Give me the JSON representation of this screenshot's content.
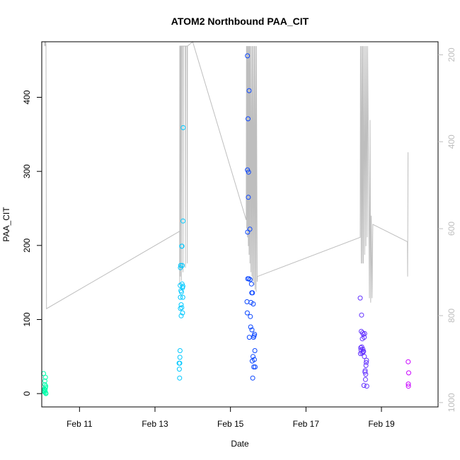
{
  "chart_data": {
    "type": "scatter",
    "title": "ATOM2 Northbound PAA_CIT",
    "xlabel": "Date",
    "ylabel": "PAA_CIT",
    "xlim": [
      "2024-02-10T00:00",
      "2024-02-20T12:00"
    ],
    "ylim": [
      -18,
      475
    ],
    "x_ticks": [
      {
        "label": "Feb 11",
        "value": "2024-02-11T00:00"
      },
      {
        "label": "Feb 13",
        "value": "2024-02-13T00:00"
      },
      {
        "label": "Feb 15",
        "value": "2024-02-15T00:00"
      },
      {
        "label": "Feb 17",
        "value": "2024-02-17T00:00"
      },
      {
        "label": "Feb 19",
        "value": "2024-02-19T00:00"
      }
    ],
    "y_ticks": [
      0,
      100,
      200,
      300,
      400
    ],
    "y2": {
      "reversed": true,
      "lim": [
        1010,
        170
      ],
      "ticks": [
        200,
        400,
        600,
        800,
        1000
      ],
      "color": "#bebebe"
    },
    "grid": false,
    "legend": "none",
    "depth_trace": [
      [
        "2024-02-10T01:48",
        135
      ],
      [
        "2024-02-10T01:56",
        180
      ],
      [
        "2024-02-10T02:10",
        148
      ],
      [
        "2024-02-10T02:19",
        180
      ],
      [
        "2024-02-10T02:33",
        157
      ],
      [
        "2024-02-10T02:42",
        180
      ],
      [
        "2024-02-10T03:00",
        784
      ],
      [
        "2024-02-13T15:40",
        606
      ],
      [
        "2024-02-13T15:42",
        730
      ],
      [
        "2024-02-13T15:45",
        180
      ],
      [
        "2024-02-13T16:05",
        180
      ],
      [
        "2024-02-13T16:10",
        710
      ],
      [
        "2024-02-13T16:20",
        180
      ],
      [
        "2024-02-13T16:40",
        180
      ],
      [
        "2024-02-13T16:48",
        720
      ],
      [
        "2024-02-13T17:00",
        180
      ],
      [
        "2024-02-13T17:40",
        180
      ],
      [
        "2024-02-13T17:50",
        700
      ],
      [
        "2024-02-13T18:00",
        180
      ],
      [
        "2024-02-13T19:10",
        180
      ],
      [
        "2024-02-13T19:20",
        690
      ],
      [
        "2024-02-13T19:30",
        180
      ],
      [
        "2024-02-13T20:20",
        180
      ],
      [
        "2024-02-13T20:30",
        680
      ],
      [
        "2024-02-13T20:40",
        180
      ],
      [
        "2024-02-14T00:00",
        170
      ],
      [
        "2024-02-15T10:00",
        580
      ],
      [
        "2024-02-15T10:10",
        180
      ],
      [
        "2024-02-15T10:20",
        600
      ],
      [
        "2024-02-15T10:30",
        180
      ],
      [
        "2024-02-15T10:48",
        620
      ],
      [
        "2024-02-15T11:00",
        180
      ],
      [
        "2024-02-15T11:20",
        640
      ],
      [
        "2024-02-15T11:30",
        180
      ],
      [
        "2024-02-15T11:50",
        660
      ],
      [
        "2024-02-15T12:00",
        180
      ],
      [
        "2024-02-15T12:20",
        680
      ],
      [
        "2024-02-15T12:30",
        180
      ],
      [
        "2024-02-15T13:00",
        700
      ],
      [
        "2024-02-15T13:10",
        180
      ],
      [
        "2024-02-15T13:40",
        710
      ],
      [
        "2024-02-15T13:50",
        180
      ],
      [
        "2024-02-15T14:20",
        720
      ],
      [
        "2024-02-15T14:30",
        180
      ],
      [
        "2024-02-15T15:00",
        730
      ],
      [
        "2024-02-15T15:10",
        180
      ],
      [
        "2024-02-15T15:40",
        740
      ],
      [
        "2024-02-15T15:50",
        180
      ],
      [
        "2024-02-15T16:20",
        745
      ],
      [
        "2024-02-15T16:30",
        180
      ],
      [
        "2024-02-15T17:00",
        722
      ],
      [
        "2024-02-15T17:06",
        710
      ],
      [
        "2024-02-18T10:30",
        620
      ],
      [
        "2024-02-18T10:40",
        180
      ],
      [
        "2024-02-18T11:10",
        680
      ],
      [
        "2024-02-18T11:20",
        180
      ],
      [
        "2024-02-18T11:50",
        680
      ],
      [
        "2024-02-18T12:00",
        180
      ],
      [
        "2024-02-18T12:30",
        680
      ],
      [
        "2024-02-18T12:40",
        180
      ],
      [
        "2024-02-18T13:20",
        660
      ],
      [
        "2024-02-18T13:30",
        180
      ],
      [
        "2024-02-18T14:10",
        640
      ],
      [
        "2024-02-18T14:20",
        180
      ],
      [
        "2024-02-18T15:00",
        620
      ],
      [
        "2024-02-18T15:10",
        180
      ],
      [
        "2024-02-18T16:00",
        570
      ],
      [
        "2024-02-18T16:20",
        760
      ],
      [
        "2024-02-18T16:45",
        350
      ],
      [
        "2024-02-18T17:10",
        770
      ],
      [
        "2024-02-18T17:30",
        570
      ],
      [
        "2024-02-18T18:00",
        760
      ],
      [
        "2024-02-18T18:30",
        590
      ],
      [
        "2024-02-19T16:30",
        630
      ],
      [
        "2024-02-19T16:40",
        710
      ],
      [
        "2024-02-19T16:55",
        425
      ],
      [
        "2024-02-19T17:05",
        425
      ]
    ],
    "points": [
      [
        "2024-02-10T01:10",
        27,
        "#00ffaa"
      ],
      [
        "2024-02-10T01:20",
        4,
        "#00ffaa"
      ],
      [
        "2024-02-10T01:30",
        3,
        "#00ffaa"
      ],
      [
        "2024-02-10T01:40",
        6,
        "#00ffaa"
      ],
      [
        "2024-02-10T01:50",
        2,
        "#00ffaa"
      ],
      [
        "2024-02-10T02:00",
        12,
        "#00ffaa"
      ],
      [
        "2024-02-10T02:00",
        17,
        "#00ffaa"
      ],
      [
        "2024-02-10T02:10",
        5,
        "#00ffaa"
      ],
      [
        "2024-02-10T02:20",
        8,
        "#00ffaa"
      ],
      [
        "2024-02-10T02:20",
        22,
        "#00ffaa"
      ],
      [
        "2024-02-10T02:30",
        1,
        "#00ffaa"
      ],
      [
        "2024-02-10T02:30",
        10,
        "#00ffaa"
      ],
      [
        "2024-02-10T02:40",
        0,
        "#00ffaa"
      ],
      [
        "2024-02-13T15:20",
        41,
        "#00c8ff"
      ],
      [
        "2024-02-13T15:30",
        33,
        "#00c8ff"
      ],
      [
        "2024-02-13T15:40",
        21,
        "#00c8ff"
      ],
      [
        "2024-02-13T15:45",
        41,
        "#00c8ff"
      ],
      [
        "2024-02-13T15:50",
        49,
        "#00c8ff"
      ],
      [
        "2024-02-13T15:55",
        58,
        "#00c8ff"
      ],
      [
        "2024-02-13T16:00",
        146,
        "#00c8ff"
      ],
      [
        "2024-02-13T16:10",
        130,
        "#00c8ff"
      ],
      [
        "2024-02-13T16:10",
        170,
        "#00c8ff"
      ],
      [
        "2024-02-13T16:10",
        115,
        "#00c8ff"
      ],
      [
        "2024-02-13T16:20",
        173,
        "#00c8ff"
      ],
      [
        "2024-02-13T16:30",
        139,
        "#00c8ff"
      ],
      [
        "2024-02-13T16:40",
        105,
        "#00c8ff"
      ],
      [
        "2024-02-13T16:40",
        120,
        "#00c8ff"
      ],
      [
        "2024-02-13T16:50",
        137,
        "#00c8ff"
      ],
      [
        "2024-02-13T17:00",
        116,
        "#00c8ff"
      ],
      [
        "2024-02-13T17:00",
        199,
        "#00c8ff"
      ],
      [
        "2024-02-13T17:10",
        199,
        "#00c8ff"
      ],
      [
        "2024-02-13T17:15",
        148,
        "#00c8ff"
      ],
      [
        "2024-02-13T17:20",
        173,
        "#00c8ff"
      ],
      [
        "2024-02-13T17:30",
        109,
        "#00c8ff"
      ],
      [
        "2024-02-13T17:30",
        143,
        "#00c8ff"
      ],
      [
        "2024-02-13T17:40",
        130,
        "#00c8ff"
      ],
      [
        "2024-02-13T17:45",
        145,
        "#00c8ff"
      ],
      [
        "2024-02-13T17:50",
        233,
        "#00c8ff"
      ],
      [
        "2024-02-13T17:55",
        359,
        "#00c8ff"
      ],
      [
        "2024-02-15T10:30",
        124,
        "#0a46ff"
      ],
      [
        "2024-02-15T10:40",
        109,
        "#0a46ff"
      ],
      [
        "2024-02-15T10:50",
        302,
        "#0a46ff"
      ],
      [
        "2024-02-15T10:50",
        456,
        "#0a46ff"
      ],
      [
        "2024-02-15T10:55",
        218,
        "#0a46ff"
      ],
      [
        "2024-02-15T11:00",
        155,
        "#0a46ff"
      ],
      [
        "2024-02-15T11:10",
        371,
        "#0a46ff"
      ],
      [
        "2024-02-15T11:20",
        265,
        "#0a46ff"
      ],
      [
        "2024-02-15T11:30",
        299,
        "#0a46ff"
      ],
      [
        "2024-02-15T11:40",
        155,
        "#0a46ff"
      ],
      [
        "2024-02-15T11:50",
        409,
        "#0a46ff"
      ],
      [
        "2024-02-15T12:00",
        76,
        "#0a46ff"
      ],
      [
        "2024-02-15T12:20",
        222,
        "#0a46ff"
      ],
      [
        "2024-02-15T12:30",
        154,
        "#0a46ff"
      ],
      [
        "2024-02-15T12:40",
        104,
        "#0a46ff"
      ],
      [
        "2024-02-15T12:50",
        90,
        "#0a46ff"
      ],
      [
        "2024-02-15T13:00",
        123,
        "#0a46ff"
      ],
      [
        "2024-02-15T13:20",
        148,
        "#0a46ff"
      ],
      [
        "2024-02-15T13:30",
        136,
        "#0a46ff"
      ],
      [
        "2024-02-15T13:40",
        86,
        "#0a46ff"
      ],
      [
        "2024-02-15T13:50",
        44,
        "#0a46ff"
      ],
      [
        "2024-02-15T14:00",
        136,
        "#0a46ff"
      ],
      [
        "2024-02-15T14:10",
        21,
        "#0a46ff"
      ],
      [
        "2024-02-15T14:20",
        50,
        "#0a46ff"
      ],
      [
        "2024-02-15T14:30",
        121,
        "#0a46ff"
      ],
      [
        "2024-02-15T14:40",
        76,
        "#0a46ff"
      ],
      [
        "2024-02-15T14:50",
        36,
        "#0a46ff"
      ],
      [
        "2024-02-15T15:00",
        78,
        "#0a46ff"
      ],
      [
        "2024-02-15T15:10",
        46,
        "#0a46ff"
      ],
      [
        "2024-02-15T15:20",
        80,
        "#0a46ff"
      ],
      [
        "2024-02-15T15:30",
        58,
        "#0a46ff"
      ],
      [
        "2024-02-15T15:40",
        36,
        "#0a46ff"
      ],
      [
        "2024-02-18T10:30",
        129,
        "#6432ff"
      ],
      [
        "2024-02-18T10:40",
        54,
        "#6432ff"
      ],
      [
        "2024-02-18T10:50",
        62,
        "#6432ff"
      ],
      [
        "2024-02-18T11:00",
        59,
        "#6432ff"
      ],
      [
        "2024-02-18T11:10",
        84,
        "#6432ff"
      ],
      [
        "2024-02-18T11:20",
        106,
        "#6432ff"
      ],
      [
        "2024-02-18T11:30",
        63,
        "#6432ff"
      ],
      [
        "2024-02-18T11:40",
        55,
        "#6432ff"
      ],
      [
        "2024-02-18T11:50",
        74,
        "#6432ff"
      ],
      [
        "2024-02-18T12:00",
        82,
        "#6432ff"
      ],
      [
        "2024-02-18T12:10",
        60,
        "#6432ff"
      ],
      [
        "2024-02-18T12:20",
        56,
        "#6432ff"
      ],
      [
        "2024-02-18T12:30",
        80,
        "#6432ff"
      ],
      [
        "2024-02-18T12:40",
        57,
        "#6432ff"
      ],
      [
        "2024-02-18T12:50",
        11,
        "#6432ff"
      ],
      [
        "2024-02-18T13:00",
        76,
        "#6432ff"
      ],
      [
        "2024-02-18T13:10",
        50,
        "#6432ff"
      ],
      [
        "2024-02-18T13:20",
        81,
        "#6432ff"
      ],
      [
        "2024-02-18T13:30",
        29,
        "#6432ff"
      ],
      [
        "2024-02-18T13:40",
        31,
        "#6432ff"
      ],
      [
        "2024-02-18T13:50",
        19,
        "#6432ff"
      ],
      [
        "2024-02-18T14:00",
        26,
        "#6432ff"
      ],
      [
        "2024-02-18T14:10",
        38,
        "#6432ff"
      ],
      [
        "2024-02-18T14:20",
        42,
        "#6432ff"
      ],
      [
        "2024-02-18T14:30",
        45,
        "#6432ff"
      ],
      [
        "2024-02-18T14:40",
        10,
        "#6432ff"
      ],
      [
        "2024-02-19T17:00",
        43,
        "#c800ff"
      ],
      [
        "2024-02-19T17:05",
        13,
        "#c800ff"
      ],
      [
        "2024-02-19T17:10",
        10,
        "#c800ff"
      ],
      [
        "2024-02-19T17:20",
        28,
        "#c800ff"
      ]
    ],
    "colors": {
      "depth_line": "#bebebe",
      "axis": "#000000",
      "right_axis": "#bebebe"
    }
  }
}
